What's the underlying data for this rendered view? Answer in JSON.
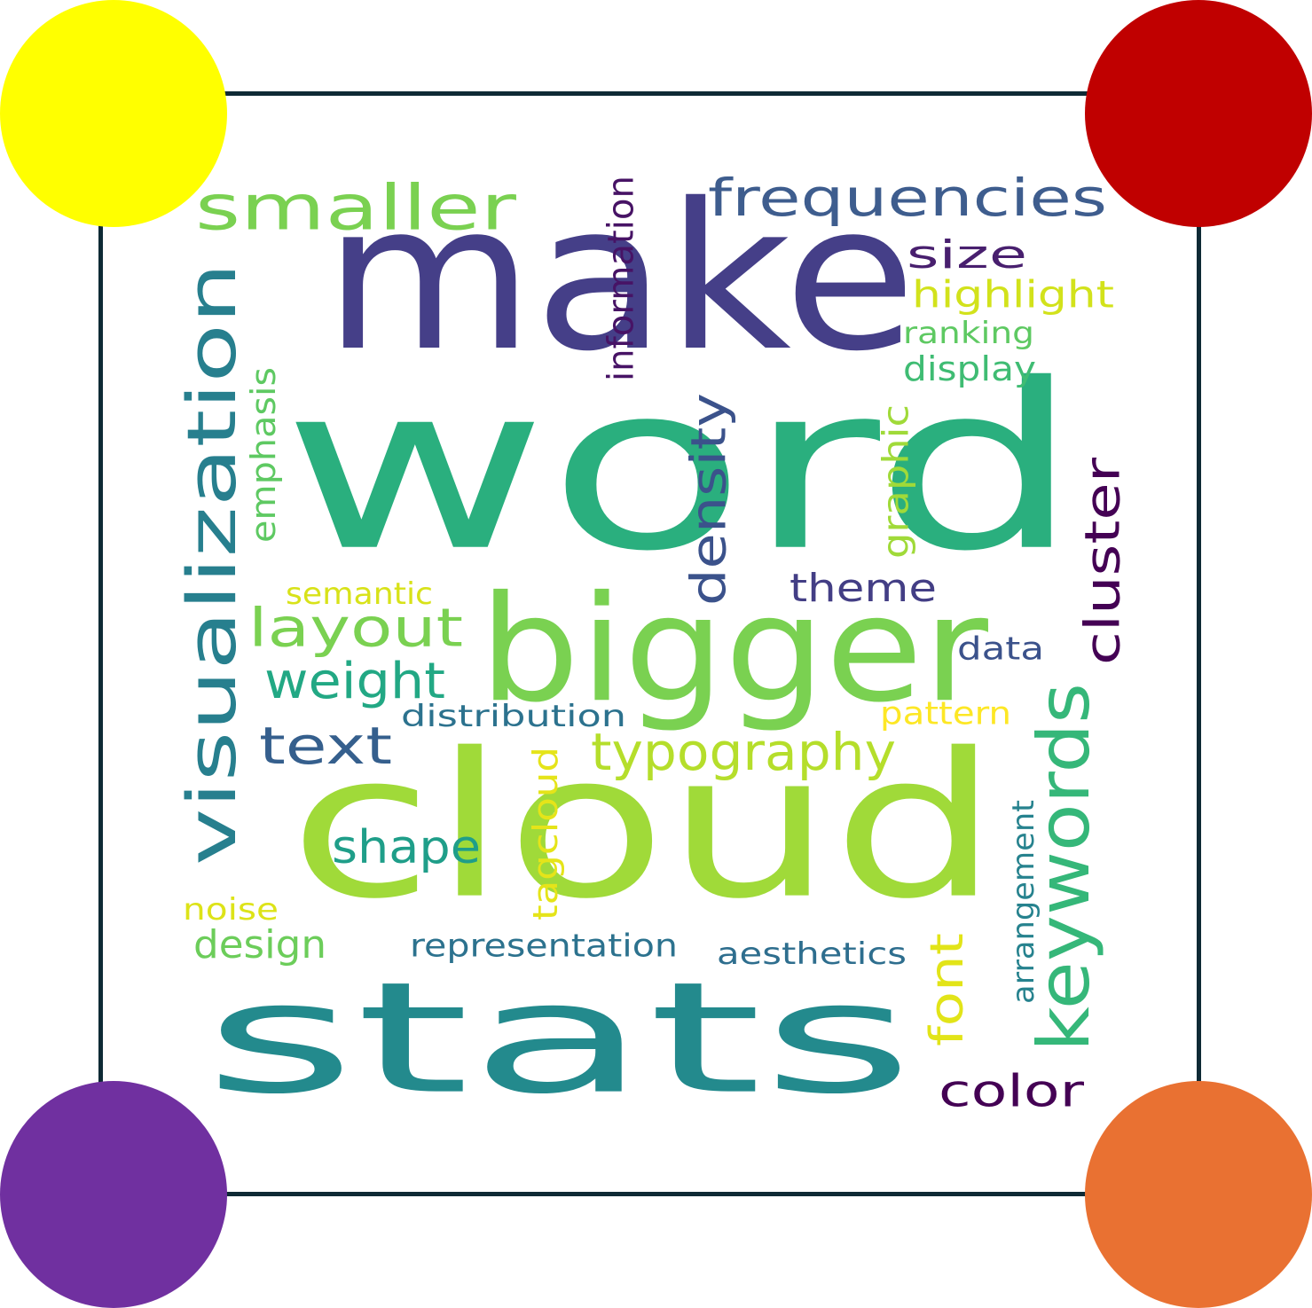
{
  "corner_dots": {
    "top_left_color": "#ffff00",
    "top_right_color": "#c00000",
    "bottom_left_color": "#7030a0",
    "bottom_right_color": "#e97132"
  },
  "frame_color": "#0e2a35",
  "words": {
    "make": {
      "text": "make",
      "color": "#453f88"
    },
    "word": {
      "text": "word",
      "color": "#2aaf7e"
    },
    "stats": {
      "text": "stats",
      "color": "#238a8d"
    },
    "cloud": {
      "text": "cloud",
      "color": "#a0da39"
    },
    "bigger": {
      "text": "bigger",
      "color": "#7ad151"
    },
    "smaller": {
      "text": "smaller",
      "color": "#7ad151"
    },
    "frequencies": {
      "text": "frequencies",
      "color": "#3e5d8e"
    },
    "size": {
      "text": "size",
      "color": "#481f6e"
    },
    "highlight": {
      "text": "highlight",
      "color": "#d2e21b"
    },
    "ranking": {
      "text": "ranking",
      "color": "#5ec962"
    },
    "display": {
      "text": "display",
      "color": "#3fbc73"
    },
    "information": {
      "text": "information",
      "color": "#471365"
    },
    "visualization": {
      "text": "visualization",
      "color": "#277f8e"
    },
    "emphasis": {
      "text": "emphasis",
      "color": "#5ec962"
    },
    "density": {
      "text": "density",
      "color": "#3b528b"
    },
    "graphic": {
      "text": "graphic",
      "color": "#a0da39"
    },
    "cluster": {
      "text": "cluster",
      "color": "#440154"
    },
    "theme": {
      "text": "theme",
      "color": "#433e85"
    },
    "layout": {
      "text": "layout",
      "color": "#7ad151"
    },
    "semantic": {
      "text": "semantic",
      "color": "#d8e219"
    },
    "data": {
      "text": "data",
      "color": "#3b528b"
    },
    "weight": {
      "text": "weight",
      "color": "#22a884"
    },
    "distribution": {
      "text": "distribution",
      "color": "#2c728e"
    },
    "pattern": {
      "text": "pattern",
      "color": "#fde725"
    },
    "keywords": {
      "text": "keywords",
      "color": "#35b779"
    },
    "text": {
      "text": "text",
      "color": "#355f8d"
    },
    "typography": {
      "text": "typography",
      "color": "#b5de2b"
    },
    "shape": {
      "text": "shape",
      "color": "#1f9e89"
    },
    "tagcloud": {
      "text": "tagcloud",
      "color": "#e5e419"
    },
    "arrangement": {
      "text": "arrangement",
      "color": "#26828e"
    },
    "noise": {
      "text": "noise",
      "color": "#dde318"
    },
    "design": {
      "text": "design",
      "color": "#6ccd5a"
    },
    "representation": {
      "text": "representation",
      "color": "#2c728e"
    },
    "aesthetics": {
      "text": "aesthetics",
      "color": "#2e6e8e"
    },
    "font": {
      "text": "font",
      "color": "#e2e418"
    },
    "color": {
      "text": "color",
      "color": "#440154"
    }
  }
}
